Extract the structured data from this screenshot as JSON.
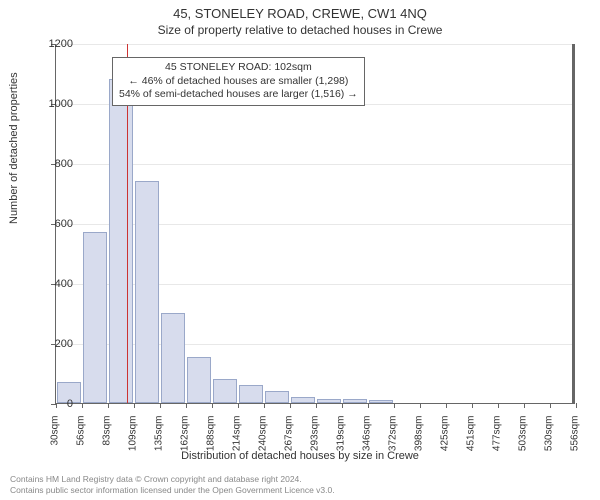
{
  "titles": {
    "main": "45, STONELEY ROAD, CREWE, CW1 4NQ",
    "sub": "Size of property relative to detached houses in Crewe"
  },
  "chart": {
    "type": "histogram",
    "ylabel": "Number of detached properties",
    "xlabel": "Distribution of detached houses by size in Crewe",
    "ylim": [
      0,
      1200
    ],
    "ytick_step": 200,
    "yticks": [
      0,
      200,
      400,
      600,
      800,
      1000,
      1200
    ],
    "xticks": [
      "30sqm",
      "56sqm",
      "83sqm",
      "109sqm",
      "135sqm",
      "162sqm",
      "188sqm",
      "214sqm",
      "240sqm",
      "267sqm",
      "293sqm",
      "319sqm",
      "346sqm",
      "372sqm",
      "398sqm",
      "425sqm",
      "451sqm",
      "477sqm",
      "503sqm",
      "530sqm",
      "556sqm"
    ],
    "bars": [
      70,
      570,
      1080,
      740,
      300,
      155,
      80,
      60,
      40,
      20,
      15,
      12,
      10,
      0,
      0,
      0,
      0,
      0,
      0,
      0
    ],
    "bar_fill": "#d7dced",
    "bar_stroke": "#9aa8c9",
    "grid_color": "#e8e8e8",
    "background": "#ffffff",
    "marker_value": 102,
    "marker_color": "#cc3333"
  },
  "annotation": {
    "line1": "45 STONELEY ROAD: 102sqm",
    "line2": "← 46% of detached houses are smaller (1,298)",
    "line3": "54% of semi-detached houses are larger (1,516) →"
  },
  "footer": {
    "line1": "Contains HM Land Registry data © Crown copyright and database right 2024.",
    "line2": "Contains public sector information licensed under the Open Government Licence v3.0."
  }
}
